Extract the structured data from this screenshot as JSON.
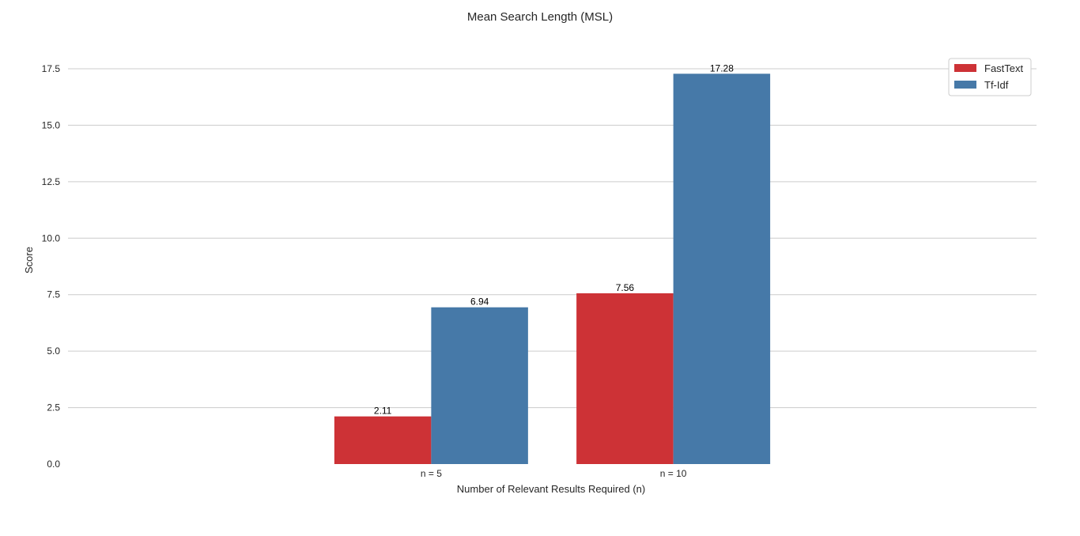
{
  "chart_data": {
    "type": "bar",
    "title": "Mean Search Length (MSL)",
    "xlabel": "Number of Relevant Results Required (n)",
    "ylabel": "Score",
    "categories": [
      "n = 5",
      "n = 10"
    ],
    "series": [
      {
        "name": "FastText",
        "color": "#cd3236",
        "values": [
          2.11,
          7.56
        ],
        "labels": [
          "2.11",
          "7.56"
        ]
      },
      {
        "name": "Tf-Idf",
        "color": "#4679a8",
        "values": [
          6.94,
          17.28
        ],
        "labels": [
          "6.94",
          "17.28"
        ]
      }
    ],
    "ylim": [
      0,
      17.5
    ],
    "yticks": [
      "0.0",
      "2.5",
      "5.0",
      "7.5",
      "10.0",
      "12.5",
      "15.0",
      "17.5"
    ],
    "grid": true,
    "legend_position": "top-right"
  }
}
